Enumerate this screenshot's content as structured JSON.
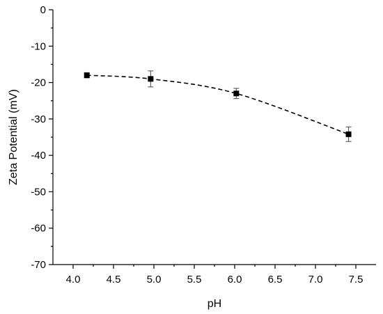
{
  "chart_data": {
    "type": "line",
    "title": "",
    "xlabel": "pH",
    "ylabel": "Zeta Potential (mV)",
    "xlim": [
      3.75,
      7.75
    ],
    "ylim": [
      -70,
      0
    ],
    "x_ticks": [
      "4.0",
      "4.5",
      "5.0",
      "5.5",
      "6.0",
      "6.5",
      "7.0",
      "7.5"
    ],
    "x_tick_values": [
      4.0,
      4.5,
      5.0,
      5.5,
      6.0,
      6.5,
      7.0,
      7.5
    ],
    "y_ticks": [
      "0",
      "-10",
      "-20",
      "-30",
      "-40",
      "-50",
      "-60",
      "-70"
    ],
    "y_tick_values": [
      0,
      -10,
      -20,
      -30,
      -40,
      -50,
      -60,
      -70
    ],
    "line_style": "dashed",
    "marker": "square",
    "grid": false,
    "legend": "none",
    "series": [
      {
        "x": [
          4.17,
          4.96,
          6.02,
          7.41
        ],
        "y": [
          -18.0,
          -19.0,
          -23.0,
          -34.2
        ],
        "error": [
          0.7,
          2.2,
          1.4,
          2.0
        ]
      }
    ]
  }
}
